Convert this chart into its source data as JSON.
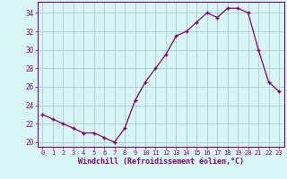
{
  "hours": [
    0,
    1,
    2,
    3,
    4,
    5,
    6,
    7,
    8,
    9,
    10,
    11,
    12,
    13,
    14,
    15,
    16,
    17,
    18,
    19,
    20,
    21,
    22,
    23
  ],
  "windchill": [
    23,
    22.5,
    22,
    21.5,
    21,
    21,
    20.5,
    20,
    21.5,
    24.5,
    26.5,
    28,
    29.5,
    31.5,
    32,
    33,
    34,
    33.5,
    34.5,
    34.5,
    34,
    30,
    26.5,
    25.5
  ],
  "line_color": "#800080",
  "marker": "+",
  "bg_color": "#d8f5f5",
  "grid_color": "#aacccc",
  "xlabel": "Windchill (Refroidissement éolien,°C)",
  "ylabel_ticks": [
    20,
    22,
    24,
    26,
    28,
    30,
    32,
    34
  ],
  "xlim": [
    -0.5,
    23.5
  ],
  "ylim": [
    19.5,
    35.2
  ],
  "xtick_labels": [
    "0",
    "1",
    "2",
    "3",
    "4",
    "5",
    "6",
    "7",
    "8",
    "9",
    "10",
    "11",
    "12",
    "13",
    "14",
    "15",
    "16",
    "17",
    "18",
    "19",
    "20",
    "21",
    "22",
    "23"
  ]
}
